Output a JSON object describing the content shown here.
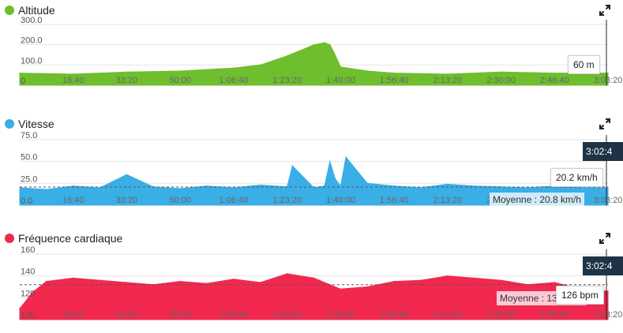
{
  "panels": [
    {
      "title": "Altitude",
      "color": "#6fbe2e",
      "tooltip": "60 m",
      "time_badge": "",
      "average_label": "",
      "y_ticks": [
        "300.0",
        "200.0",
        "100.0",
        "0"
      ]
    },
    {
      "title": "Vitesse",
      "color": "#3aaee6",
      "tooltip": "20.2 km/h",
      "time_badge": "3:02:4",
      "average_label": "Moyenne : 20.8 km/h",
      "y_ticks": [
        "75.0",
        "50.0",
        "25.0",
        "0.0"
      ]
    },
    {
      "title": "Fréquence cardiaque",
      "color": "#f2284f",
      "tooltip": "126 bpm",
      "time_badge": "3:02:4",
      "average_label": "Moyenne : 132 bpm",
      "y_ticks": [
        "160",
        "140",
        "120",
        "100"
      ]
    }
  ],
  "x_ticks": [
    "16:40",
    "33:20",
    "50:00",
    "1:06:40",
    "1:23:20",
    "1:40:00",
    "1:56:40",
    "2:13:20",
    "2:30:00",
    "2:46:40",
    "3:03:20"
  ],
  "chart_data": [
    {
      "type": "area",
      "title": "Altitude",
      "xlabel": "",
      "ylabel": "",
      "unit": "m",
      "ylim": [
        0,
        300
      ],
      "x": [
        "0:00",
        "16:40",
        "33:20",
        "50:00",
        "1:06:40",
        "1:15:00",
        "1:23:20",
        "1:28:00",
        "1:31:40",
        "1:35:00",
        "1:36:40",
        "1:38:00",
        "1:40:00",
        "1:48:20",
        "1:56:40",
        "2:13:20",
        "2:30:00",
        "2:46:40",
        "3:03:20"
      ],
      "values": [
        60,
        55,
        65,
        70,
        85,
        100,
        145,
        175,
        200,
        210,
        200,
        160,
        90,
        70,
        60,
        55,
        65,
        60,
        60
      ]
    },
    {
      "type": "area",
      "title": "Vitesse",
      "xlabel": "",
      "ylabel": "",
      "unit": "km/h",
      "ylim": [
        0,
        75
      ],
      "average": 20.8,
      "x": [
        "0:00",
        "8:20",
        "16:40",
        "25:00",
        "33:20",
        "41:40",
        "50:00",
        "58:20",
        "1:06:40",
        "1:15:00",
        "1:23:20",
        "1:25:00",
        "1:31:40",
        "1:35:00",
        "1:36:40",
        "1:38:20",
        "1:40:00",
        "1:41:40",
        "1:48:20",
        "1:56:40",
        "2:05:00",
        "2:13:20",
        "2:21:40",
        "2:30:00",
        "2:38:20",
        "2:46:40",
        "2:55:00",
        "3:03:20"
      ],
      "values": [
        20,
        18,
        22,
        20,
        35,
        21,
        19,
        22,
        20,
        23,
        21,
        45,
        20,
        22,
        50,
        30,
        22,
        55,
        25,
        22,
        20,
        24,
        22,
        21,
        20,
        22,
        20,
        20
      ]
    },
    {
      "type": "area",
      "title": "Fréquence cardiaque",
      "xlabel": "",
      "ylabel": "",
      "unit": "bpm",
      "ylim": [
        100,
        160
      ],
      "average": 132,
      "x": [
        "0:00",
        "4:00",
        "8:20",
        "16:40",
        "25:00",
        "33:20",
        "41:40",
        "50:00",
        "58:20",
        "1:06:40",
        "1:15:00",
        "1:23:20",
        "1:31:40",
        "1:40:00",
        "1:48:20",
        "1:56:40",
        "2:05:00",
        "2:13:20",
        "2:21:40",
        "2:30:00",
        "2:38:20",
        "2:46:40",
        "2:55:00",
        "3:03:20"
      ],
      "values": [
        110,
        125,
        135,
        138,
        136,
        134,
        132,
        135,
        133,
        137,
        134,
        142,
        138,
        128,
        130,
        135,
        136,
        140,
        138,
        136,
        132,
        134,
        128,
        126
      ]
    }
  ]
}
